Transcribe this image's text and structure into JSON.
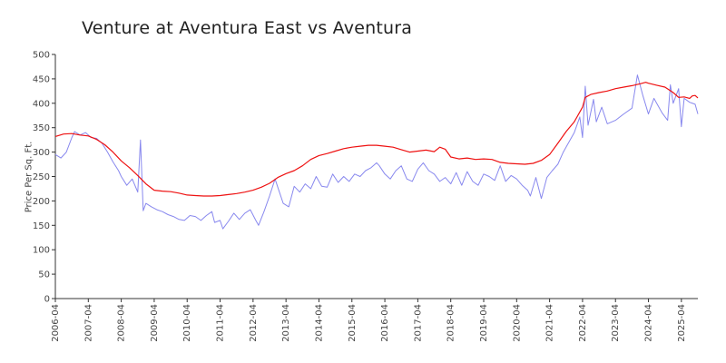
{
  "chart_data": {
    "type": "line",
    "title": "Venture at Aventura East vs Aventura",
    "xlabel": "",
    "ylabel": "Price Per Sq. Ft.",
    "ylim": [
      0,
      500
    ],
    "yticks": [
      0,
      50,
      100,
      150,
      200,
      250,
      300,
      350,
      400,
      450,
      500
    ],
    "xlim": [
      "2006-04",
      "2025-10"
    ],
    "xticks": [
      "2006-04",
      "2007-04",
      "2008-04",
      "2009-04",
      "2010-04",
      "2011-04",
      "2012-04",
      "2013-04",
      "2014-04",
      "2015-04",
      "2016-04",
      "2017-04",
      "2018-04",
      "2019-04",
      "2020-04",
      "2021-04",
      "2022-04",
      "2023-04",
      "2024-04",
      "2025-04"
    ],
    "grid": false,
    "legend": "none",
    "series": [
      {
        "color": "#8888ee",
        "points": [
          [
            "2006-04",
            295
          ],
          [
            "2006-06",
            288
          ],
          [
            "2006-08",
            300
          ],
          [
            "2006-10",
            330
          ],
          [
            "2006-11",
            342
          ],
          [
            "2007-01",
            335
          ],
          [
            "2007-03",
            340
          ],
          [
            "2007-05",
            330
          ],
          [
            "2007-07",
            328
          ],
          [
            "2007-09",
            318
          ],
          [
            "2007-11",
            300
          ],
          [
            "2008-01",
            280
          ],
          [
            "2008-03",
            262
          ],
          [
            "2008-04",
            250
          ],
          [
            "2008-06",
            232
          ],
          [
            "2008-08",
            245
          ],
          [
            "2008-10",
            218
          ],
          [
            "2008-11",
            325
          ],
          [
            "2008-12",
            180
          ],
          [
            "2009-01",
            195
          ],
          [
            "2009-03",
            188
          ],
          [
            "2009-05",
            182
          ],
          [
            "2009-07",
            178
          ],
          [
            "2009-09",
            172
          ],
          [
            "2009-11",
            168
          ],
          [
            "2010-01",
            162
          ],
          [
            "2010-03",
            160
          ],
          [
            "2010-05",
            170
          ],
          [
            "2010-07",
            168
          ],
          [
            "2010-09",
            160
          ],
          [
            "2010-11",
            170
          ],
          [
            "2011-01",
            178
          ],
          [
            "2011-02",
            156
          ],
          [
            "2011-04",
            160
          ],
          [
            "2011-05",
            143
          ],
          [
            "2011-07",
            158
          ],
          [
            "2011-09",
            175
          ],
          [
            "2011-11",
            162
          ],
          [
            "2012-01",
            175
          ],
          [
            "2012-03",
            182
          ],
          [
            "2012-05",
            160
          ],
          [
            "2012-06",
            150
          ],
          [
            "2012-08",
            178
          ],
          [
            "2012-10",
            210
          ],
          [
            "2012-12",
            245
          ],
          [
            "2013-01",
            228
          ],
          [
            "2013-03",
            195
          ],
          [
            "2013-05",
            188
          ],
          [
            "2013-07",
            230
          ],
          [
            "2013-09",
            218
          ],
          [
            "2013-11",
            235
          ],
          [
            "2014-01",
            225
          ],
          [
            "2014-03",
            250
          ],
          [
            "2014-05",
            230
          ],
          [
            "2014-07",
            228
          ],
          [
            "2014-09",
            255
          ],
          [
            "2014-11",
            238
          ],
          [
            "2015-01",
            250
          ],
          [
            "2015-03",
            240
          ],
          [
            "2015-05",
            255
          ],
          [
            "2015-07",
            250
          ],
          [
            "2015-09",
            262
          ],
          [
            "2015-11",
            268
          ],
          [
            "2016-01",
            278
          ],
          [
            "2016-02",
            272
          ],
          [
            "2016-04",
            255
          ],
          [
            "2016-06",
            245
          ],
          [
            "2016-08",
            262
          ],
          [
            "2016-10",
            272
          ],
          [
            "2016-12",
            245
          ],
          [
            "2017-02",
            240
          ],
          [
            "2017-04",
            265
          ],
          [
            "2017-06",
            278
          ],
          [
            "2017-08",
            262
          ],
          [
            "2017-10",
            255
          ],
          [
            "2017-12",
            240
          ],
          [
            "2018-02",
            248
          ],
          [
            "2018-04",
            235
          ],
          [
            "2018-06",
            258
          ],
          [
            "2018-08",
            232
          ],
          [
            "2018-10",
            260
          ],
          [
            "2018-12",
            240
          ],
          [
            "2019-02",
            232
          ],
          [
            "2019-04",
            255
          ],
          [
            "2019-06",
            250
          ],
          [
            "2019-08",
            242
          ],
          [
            "2019-10",
            272
          ],
          [
            "2019-12",
            240
          ],
          [
            "2020-02",
            252
          ],
          [
            "2020-04",
            245
          ],
          [
            "2020-06",
            232
          ],
          [
            "2020-08",
            222
          ],
          [
            "2020-09",
            210
          ],
          [
            "2020-11",
            248
          ],
          [
            "2021-01",
            205
          ],
          [
            "2021-03",
            248
          ],
          [
            "2021-05",
            262
          ],
          [
            "2021-07",
            275
          ],
          [
            "2021-09",
            300
          ],
          [
            "2021-11",
            320
          ],
          [
            "2022-01",
            340
          ],
          [
            "2022-03",
            372
          ],
          [
            "2022-04",
            330
          ],
          [
            "2022-05",
            435
          ],
          [
            "2022-06",
            355
          ],
          [
            "2022-08",
            408
          ],
          [
            "2022-09",
            362
          ],
          [
            "2022-11",
            392
          ],
          [
            "2023-01",
            358
          ],
          [
            "2023-04",
            365
          ],
          [
            "2023-07",
            378
          ],
          [
            "2023-10",
            390
          ],
          [
            "2023-12",
            458
          ],
          [
            "2024-02",
            415
          ],
          [
            "2024-04",
            378
          ],
          [
            "2024-06",
            410
          ],
          [
            "2024-09",
            380
          ],
          [
            "2024-11",
            365
          ],
          [
            "2024-12",
            438
          ],
          [
            "2025-01",
            400
          ],
          [
            "2025-03",
            430
          ],
          [
            "2025-04",
            352
          ],
          [
            "2025-05",
            410
          ],
          [
            "2025-07",
            402
          ],
          [
            "2025-09",
            398
          ],
          [
            "2025-10",
            378
          ]
        ]
      },
      {
        "color": "#ee1111",
        "points": [
          [
            "2006-04",
            332
          ],
          [
            "2006-07",
            337
          ],
          [
            "2006-10",
            338
          ],
          [
            "2007-01",
            335
          ],
          [
            "2007-04",
            333
          ],
          [
            "2007-07",
            326
          ],
          [
            "2007-10",
            315
          ],
          [
            "2008-01",
            300
          ],
          [
            "2008-04",
            282
          ],
          [
            "2008-07",
            268
          ],
          [
            "2008-10",
            252
          ],
          [
            "2009-01",
            235
          ],
          [
            "2009-04",
            222
          ],
          [
            "2009-07",
            220
          ],
          [
            "2009-10",
            219
          ],
          [
            "2010-01",
            216
          ],
          [
            "2010-04",
            212
          ],
          [
            "2010-07",
            211
          ],
          [
            "2010-10",
            210
          ],
          [
            "2011-01",
            210
          ],
          [
            "2011-04",
            211
          ],
          [
            "2011-07",
            213
          ],
          [
            "2011-10",
            215
          ],
          [
            "2012-01",
            218
          ],
          [
            "2012-04",
            222
          ],
          [
            "2012-07",
            228
          ],
          [
            "2012-10",
            236
          ],
          [
            "2013-01",
            248
          ],
          [
            "2013-04",
            256
          ],
          [
            "2013-07",
            262
          ],
          [
            "2013-10",
            272
          ],
          [
            "2014-01",
            285
          ],
          [
            "2014-04",
            293
          ],
          [
            "2014-07",
            297
          ],
          [
            "2014-10",
            302
          ],
          [
            "2015-01",
            307
          ],
          [
            "2015-04",
            310
          ],
          [
            "2015-07",
            312
          ],
          [
            "2015-10",
            314
          ],
          [
            "2016-01",
            314
          ],
          [
            "2016-04",
            312
          ],
          [
            "2016-07",
            310
          ],
          [
            "2016-10",
            305
          ],
          [
            "2017-01",
            300
          ],
          [
            "2017-04",
            302
          ],
          [
            "2017-07",
            304
          ],
          [
            "2017-10",
            301
          ],
          [
            "2017-12",
            310
          ],
          [
            "2018-02",
            306
          ],
          [
            "2018-04",
            290
          ],
          [
            "2018-07",
            286
          ],
          [
            "2018-10",
            288
          ],
          [
            "2019-01",
            285
          ],
          [
            "2019-04",
            286
          ],
          [
            "2019-07",
            285
          ],
          [
            "2019-10",
            279
          ],
          [
            "2020-01",
            277
          ],
          [
            "2020-04",
            276
          ],
          [
            "2020-07",
            275
          ],
          [
            "2020-10",
            277
          ],
          [
            "2021-01",
            283
          ],
          [
            "2021-04",
            295
          ],
          [
            "2021-07",
            318
          ],
          [
            "2021-10",
            342
          ],
          [
            "2022-01",
            362
          ],
          [
            "2022-04",
            392
          ],
          [
            "2022-05",
            412
          ],
          [
            "2022-07",
            418
          ],
          [
            "2022-10",
            422
          ],
          [
            "2023-01",
            425
          ],
          [
            "2023-04",
            430
          ],
          [
            "2023-07",
            433
          ],
          [
            "2023-10",
            436
          ],
          [
            "2024-01",
            440
          ],
          [
            "2024-03",
            443
          ],
          [
            "2024-04",
            441
          ],
          [
            "2024-07",
            437
          ],
          [
            "2024-10",
            433
          ],
          [
            "2025-01",
            422
          ],
          [
            "2025-03",
            412
          ],
          [
            "2025-05",
            413
          ],
          [
            "2025-07",
            410
          ],
          [
            "2025-08",
            415
          ],
          [
            "2025-09",
            416
          ],
          [
            "2025-10",
            411
          ]
        ]
      }
    ]
  }
}
